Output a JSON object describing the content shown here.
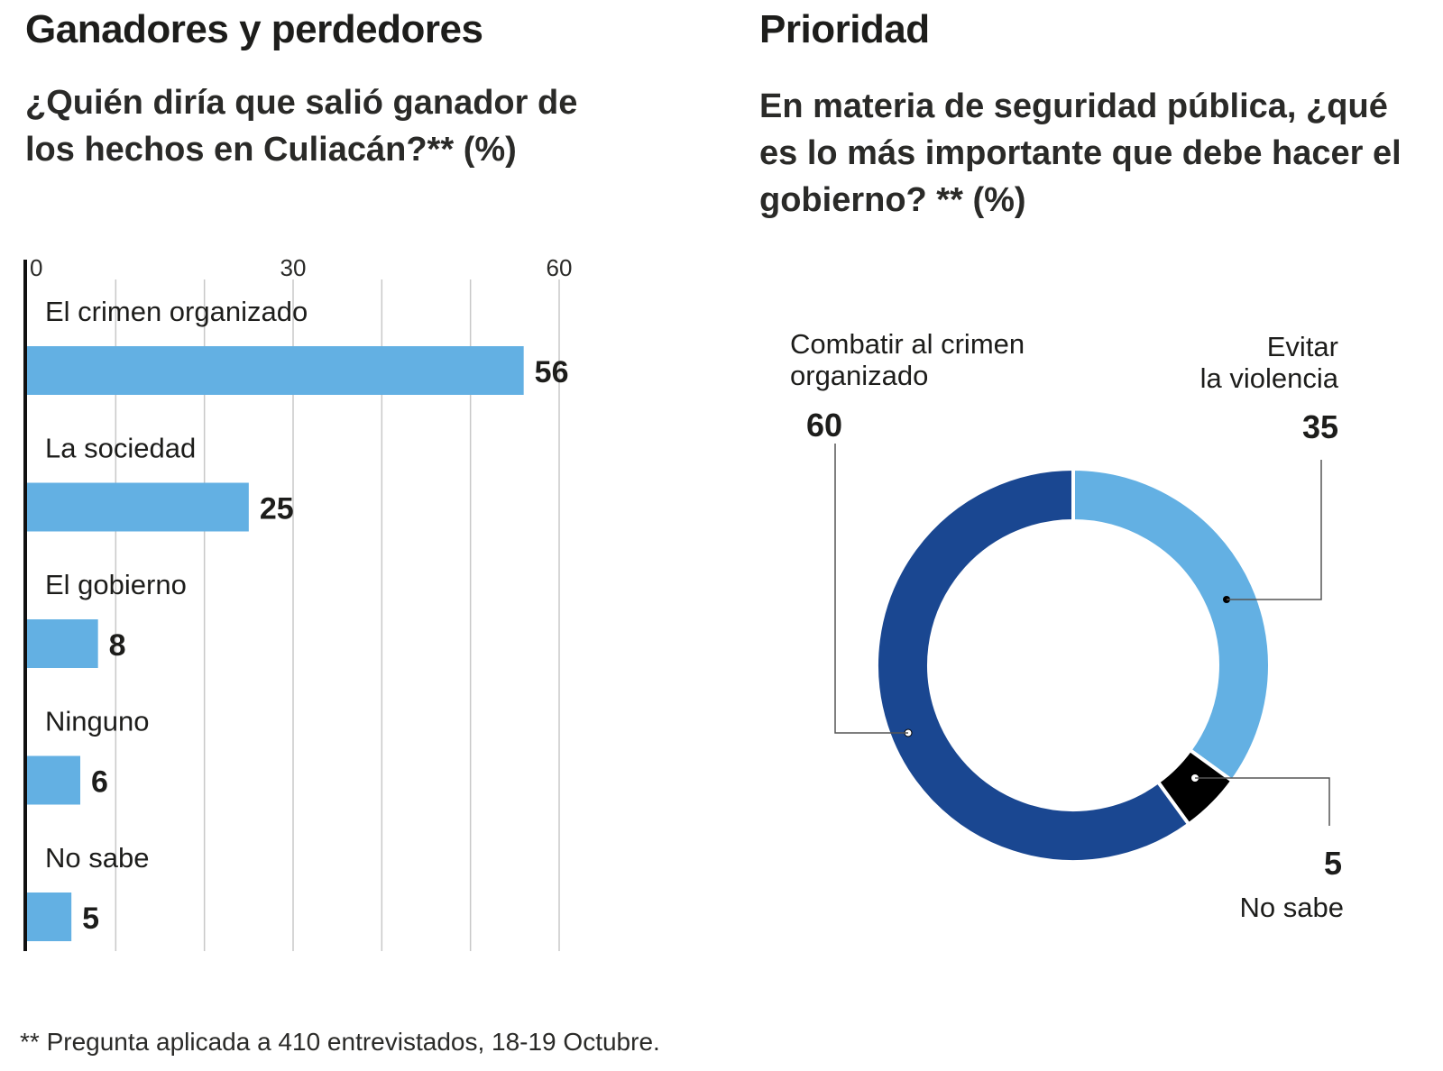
{
  "left": {
    "title": "Ganadores y perdedores",
    "subtitle": "¿Quién diría que salió ganador de los hechos en Culiacán?** (%)"
  },
  "right": {
    "title": "Prioridad",
    "subtitle": "En materia de seguridad pública, ¿qué es lo más importante que debe hacer el gobierno? ** (%)"
  },
  "footnote": "** Pregunta aplicada a 410 entrevistados, 18-19 Octubre.",
  "colors": {
    "bar": "#63b0e3",
    "dark_blue": "#1a4791",
    "light_blue": "#63b0e3",
    "black": "#000000",
    "grid": "#c8c8c8",
    "text": "#1d1d1b"
  },
  "chart_data": [
    {
      "type": "bar",
      "orientation": "horizontal",
      "title": "Ganadores y perdedores",
      "subtitle": "¿Quién diría que salió ganador de los hechos en Culiacán?** (%)",
      "categories": [
        "El crimen organizado",
        "La sociedad",
        "El gobierno",
        "Ninguno",
        "No sabe"
      ],
      "values": [
        56,
        25,
        8,
        6,
        5
      ],
      "xlim": [
        0,
        60
      ],
      "xticks": [
        0,
        30,
        60
      ],
      "grid_step": 10,
      "grid": true,
      "data_labels": true
    },
    {
      "type": "pie",
      "donut": true,
      "title": "Prioridad",
      "subtitle": "En materia de seguridad pública, ¿qué es lo más importante que debe hacer el gobierno? ** (%)",
      "slices": [
        {
          "label": "Evitar la violencia",
          "label_lines": [
            "Evitar",
            "la violencia"
          ],
          "value": 35,
          "color": "#63b0e3"
        },
        {
          "label": "No sabe",
          "label_lines": [
            "No sabe"
          ],
          "value": 5,
          "color": "#000000"
        },
        {
          "label": "Combatir al crimen organizado",
          "label_lines": [
            "Combatir al crimen",
            "organizado"
          ],
          "value": 60,
          "color": "#1a4791"
        }
      ]
    }
  ]
}
